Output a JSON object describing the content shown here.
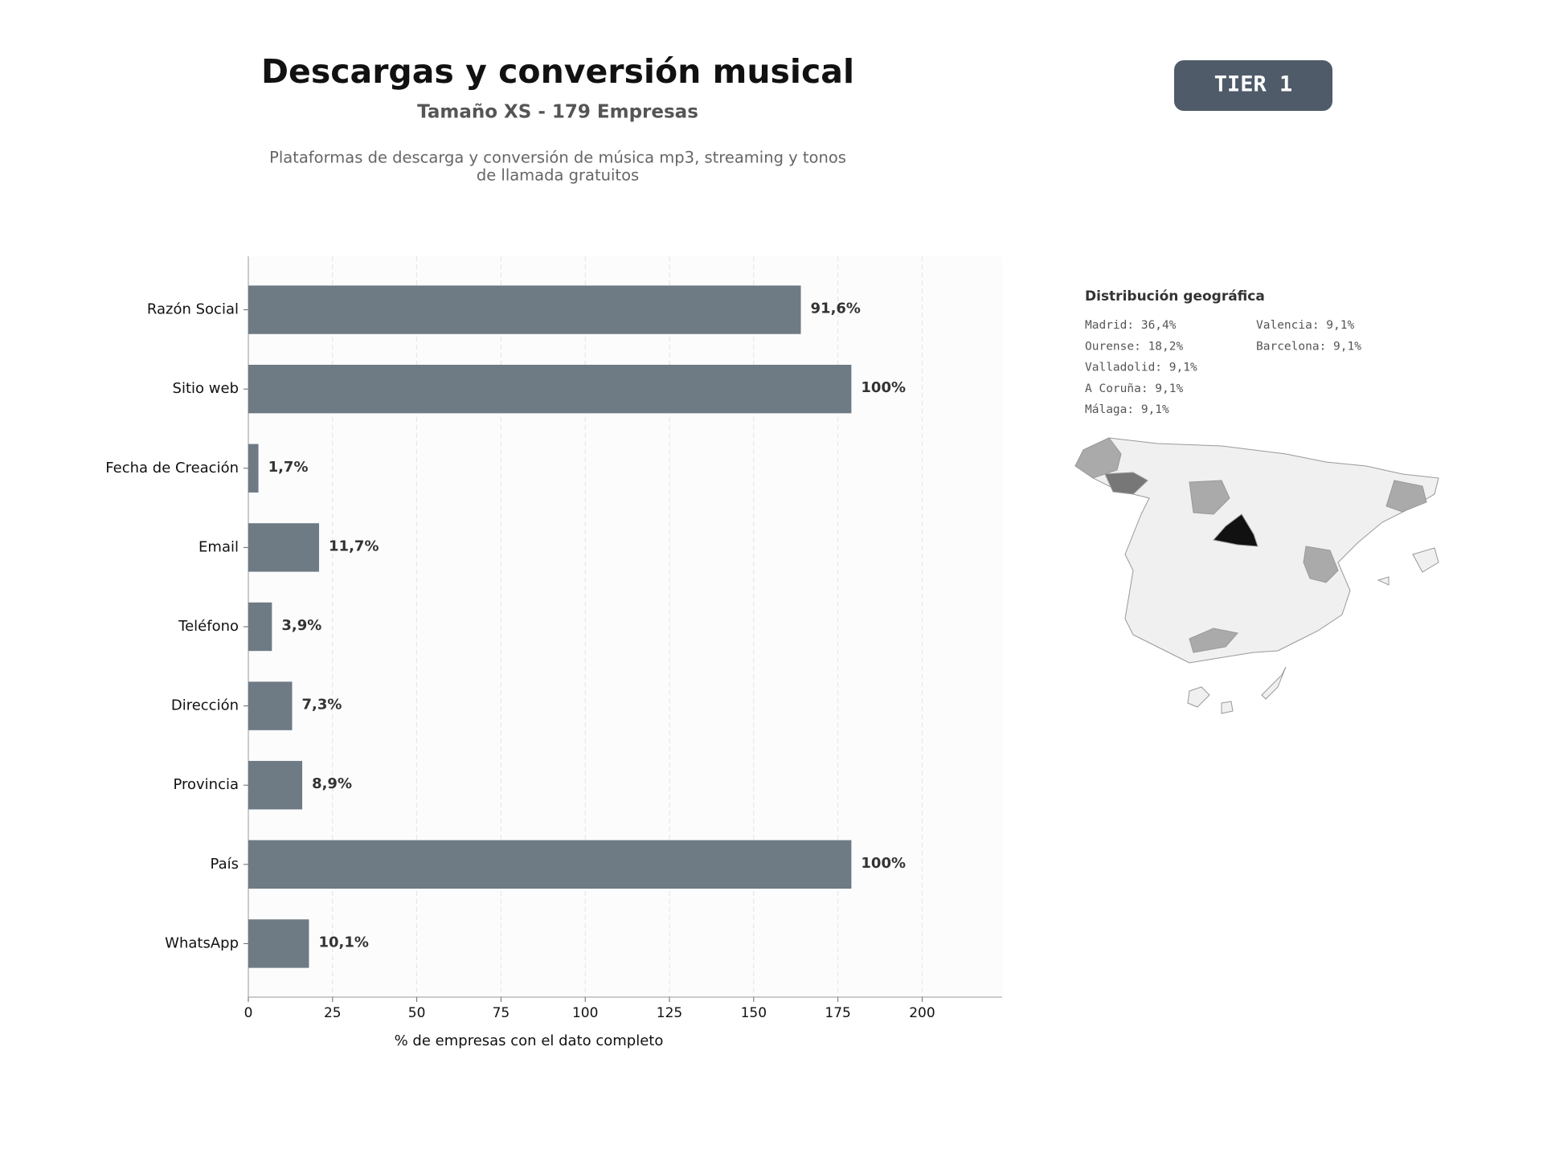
{
  "chart_data": {
    "type": "barh",
    "title": "Descargas y conversión musical",
    "subtitle": "Tamaño XS - 179 Empresas",
    "description": [
      "Plataformas de descarga y conversión de música mp3, streaming y tonos",
      "de llamada gratuitos"
    ],
    "xlabel": "% de empresas con el dato completo",
    "categories": [
      "Razón Social",
      "Sitio web",
      "Fecha de Creación",
      "Email",
      "Teléfono",
      "Dirección",
      "Provincia",
      "País",
      "WhatsApp"
    ],
    "values": [
      164,
      179,
      3,
      21,
      7,
      13,
      16,
      179,
      18
    ],
    "value_labels": [
      "91,6%",
      "100%",
      "1,7%",
      "11,7%",
      "3,9%",
      "7,3%",
      "8,9%",
      "100%",
      "10,1%"
    ],
    "color": "#6e7a84",
    "xlim": [
      0,
      223.75
    ],
    "xticks": [
      0,
      25,
      50,
      75,
      100,
      125,
      150,
      175,
      200
    ],
    "grid": true
  },
  "badge": "TIER 1",
  "geo": {
    "title": "Distribución geográfica",
    "items": [
      "Madrid: 36,4%",
      "Ourense: 18,2%",
      "Valladolid: 9,1%",
      "A Coruña: 9,1%",
      "Málaga: 9,1%",
      "Valencia: 9,1%",
      "Barcelona: 9,1%"
    ]
  }
}
